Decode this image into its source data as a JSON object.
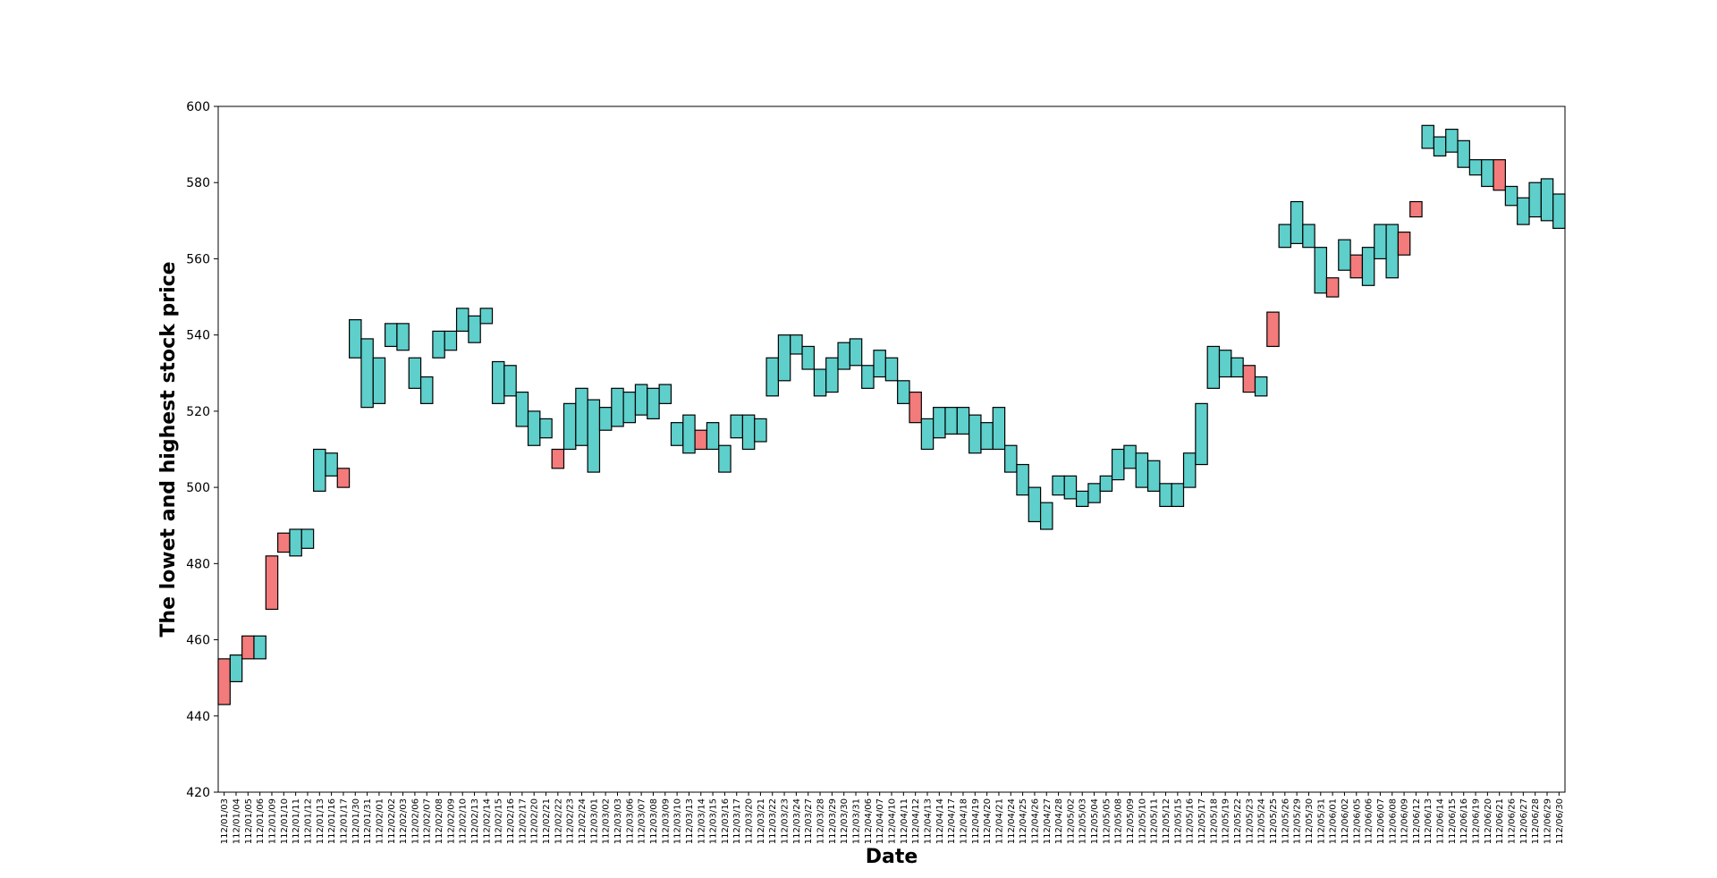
{
  "chart_data": {
    "type": "bar",
    "subtype": "floating-range",
    "title": "",
    "xlabel": "Date",
    "ylabel": "The lowet and highest stock price",
    "ylim": [
      420,
      600
    ],
    "yticks": [
      420,
      440,
      460,
      480,
      500,
      520,
      540,
      560,
      580,
      600
    ],
    "grid": false,
    "colors": {
      "up": "#5ecfcb",
      "down": "#f47b7b",
      "edge": "#000000"
    },
    "categories": [
      "112/01/03",
      "112/01/04",
      "112/01/05",
      "112/01/06",
      "112/01/09",
      "112/01/10",
      "112/01/11",
      "112/01/12",
      "112/01/13",
      "112/01/16",
      "112/01/17",
      "112/01/30",
      "112/01/31",
      "112/02/01",
      "112/02/02",
      "112/02/03",
      "112/02/06",
      "112/02/07",
      "112/02/08",
      "112/02/09",
      "112/02/10",
      "112/02/13",
      "112/02/14",
      "112/02/15",
      "112/02/16",
      "112/02/17",
      "112/02/20",
      "112/02/21",
      "112/02/22",
      "112/02/23",
      "112/02/24",
      "112/03/01",
      "112/03/02",
      "112/03/03",
      "112/03/06",
      "112/03/07",
      "112/03/08",
      "112/03/09",
      "112/03/10",
      "112/03/13",
      "112/03/14",
      "112/03/15",
      "112/03/16",
      "112/03/17",
      "112/03/20",
      "112/03/21",
      "112/03/22",
      "112/03/23",
      "112/03/24",
      "112/03/27",
      "112/03/28",
      "112/03/29",
      "112/03/30",
      "112/03/31",
      "112/04/06",
      "112/04/07",
      "112/04/10",
      "112/04/11",
      "112/04/12",
      "112/04/13",
      "112/04/14",
      "112/04/17",
      "112/04/18",
      "112/04/19",
      "112/04/20",
      "112/04/21",
      "112/04/24",
      "112/04/25",
      "112/04/26",
      "112/04/27",
      "112/04/28",
      "112/05/02",
      "112/05/03",
      "112/05/04",
      "112/05/05",
      "112/05/08",
      "112/05/09",
      "112/05/10",
      "112/05/11",
      "112/05/12",
      "112/05/15",
      "112/05/16",
      "112/05/17",
      "112/05/18",
      "112/05/19",
      "112/05/22",
      "112/05/23",
      "112/05/24",
      "112/05/25",
      "112/05/26",
      "112/05/29",
      "112/05/30",
      "112/05/31",
      "112/06/01",
      "112/06/02",
      "112/06/05",
      "112/06/06",
      "112/06/07",
      "112/06/08",
      "112/06/09",
      "112/06/12",
      "112/06/13",
      "112/06/14",
      "112/06/15",
      "112/06/16",
      "112/06/19",
      "112/06/20",
      "112/06/21",
      "112/06/26",
      "112/06/27",
      "112/06/28",
      "112/06/29",
      "112/06/30"
    ],
    "low": [
      443,
      449,
      455,
      455,
      468,
      483,
      482,
      484,
      499,
      503,
      500,
      534,
      521,
      522,
      537,
      536,
      526,
      522,
      534,
      536,
      541,
      538,
      543,
      522,
      524,
      516,
      511,
      513,
      505,
      510,
      511,
      504,
      515,
      516,
      517,
      519,
      518,
      522,
      511,
      509,
      510,
      510,
      504,
      513,
      510,
      512,
      524,
      528,
      535,
      531,
      524,
      525,
      531,
      532,
      526,
      529,
      528,
      522,
      517,
      510,
      513,
      514,
      514,
      509,
      510,
      510,
      504,
      498,
      491,
      489,
      498,
      497,
      495,
      496,
      499,
      502,
      505,
      500,
      499,
      495,
      495,
      500,
      506,
      526,
      529,
      529,
      525,
      524,
      537,
      563,
      564,
      563,
      551,
      550,
      557,
      555,
      553,
      560,
      555,
      561,
      571,
      589,
      587,
      588,
      584,
      582,
      579,
      578,
      574,
      569,
      571,
      570,
      568
    ],
    "high": [
      455,
      456,
      461,
      461,
      482,
      488,
      489,
      489,
      510,
      509,
      505,
      544,
      539,
      534,
      543,
      543,
      534,
      529,
      541,
      541,
      547,
      545,
      547,
      533,
      532,
      525,
      520,
      518,
      510,
      522,
      526,
      523,
      521,
      526,
      525,
      527,
      526,
      527,
      517,
      519,
      515,
      517,
      511,
      519,
      519,
      518,
      534,
      540,
      540,
      537,
      531,
      534,
      538,
      539,
      532,
      536,
      534,
      528,
      525,
      518,
      521,
      521,
      521,
      519,
      517,
      521,
      511,
      506,
      500,
      496,
      503,
      503,
      499,
      501,
      503,
      510,
      511,
      509,
      507,
      501,
      501,
      509,
      522,
      537,
      536,
      534,
      532,
      529,
      546,
      569,
      575,
      569,
      563,
      555,
      565,
      561,
      563,
      569,
      569,
      567,
      575,
      595,
      592,
      594,
      591,
      586,
      586,
      586,
      579,
      576,
      580,
      581,
      577
    ],
    "direction": [
      "down",
      "up",
      "down",
      "up",
      "down",
      "down",
      "up",
      "up",
      "up",
      "up",
      "down",
      "up",
      "up",
      "up",
      "up",
      "up",
      "up",
      "up",
      "up",
      "up",
      "up",
      "up",
      "up",
      "up",
      "up",
      "up",
      "up",
      "up",
      "down",
      "up",
      "up",
      "up",
      "up",
      "up",
      "up",
      "up",
      "up",
      "up",
      "up",
      "up",
      "down",
      "up",
      "up",
      "up",
      "up",
      "up",
      "up",
      "up",
      "up",
      "up",
      "up",
      "up",
      "up",
      "up",
      "up",
      "up",
      "up",
      "up",
      "down",
      "up",
      "up",
      "up",
      "up",
      "up",
      "up",
      "up",
      "up",
      "up",
      "up",
      "up",
      "up",
      "up",
      "up",
      "up",
      "up",
      "up",
      "up",
      "up",
      "up",
      "up",
      "up",
      "up",
      "up",
      "up",
      "up",
      "up",
      "down",
      "up",
      "down",
      "up",
      "up",
      "up",
      "up",
      "down",
      "up",
      "down",
      "up",
      "up",
      "up",
      "down",
      "down",
      "up",
      "up",
      "up",
      "up",
      "up",
      "up",
      "down",
      "up",
      "up",
      "up",
      "up",
      "up"
    ]
  }
}
